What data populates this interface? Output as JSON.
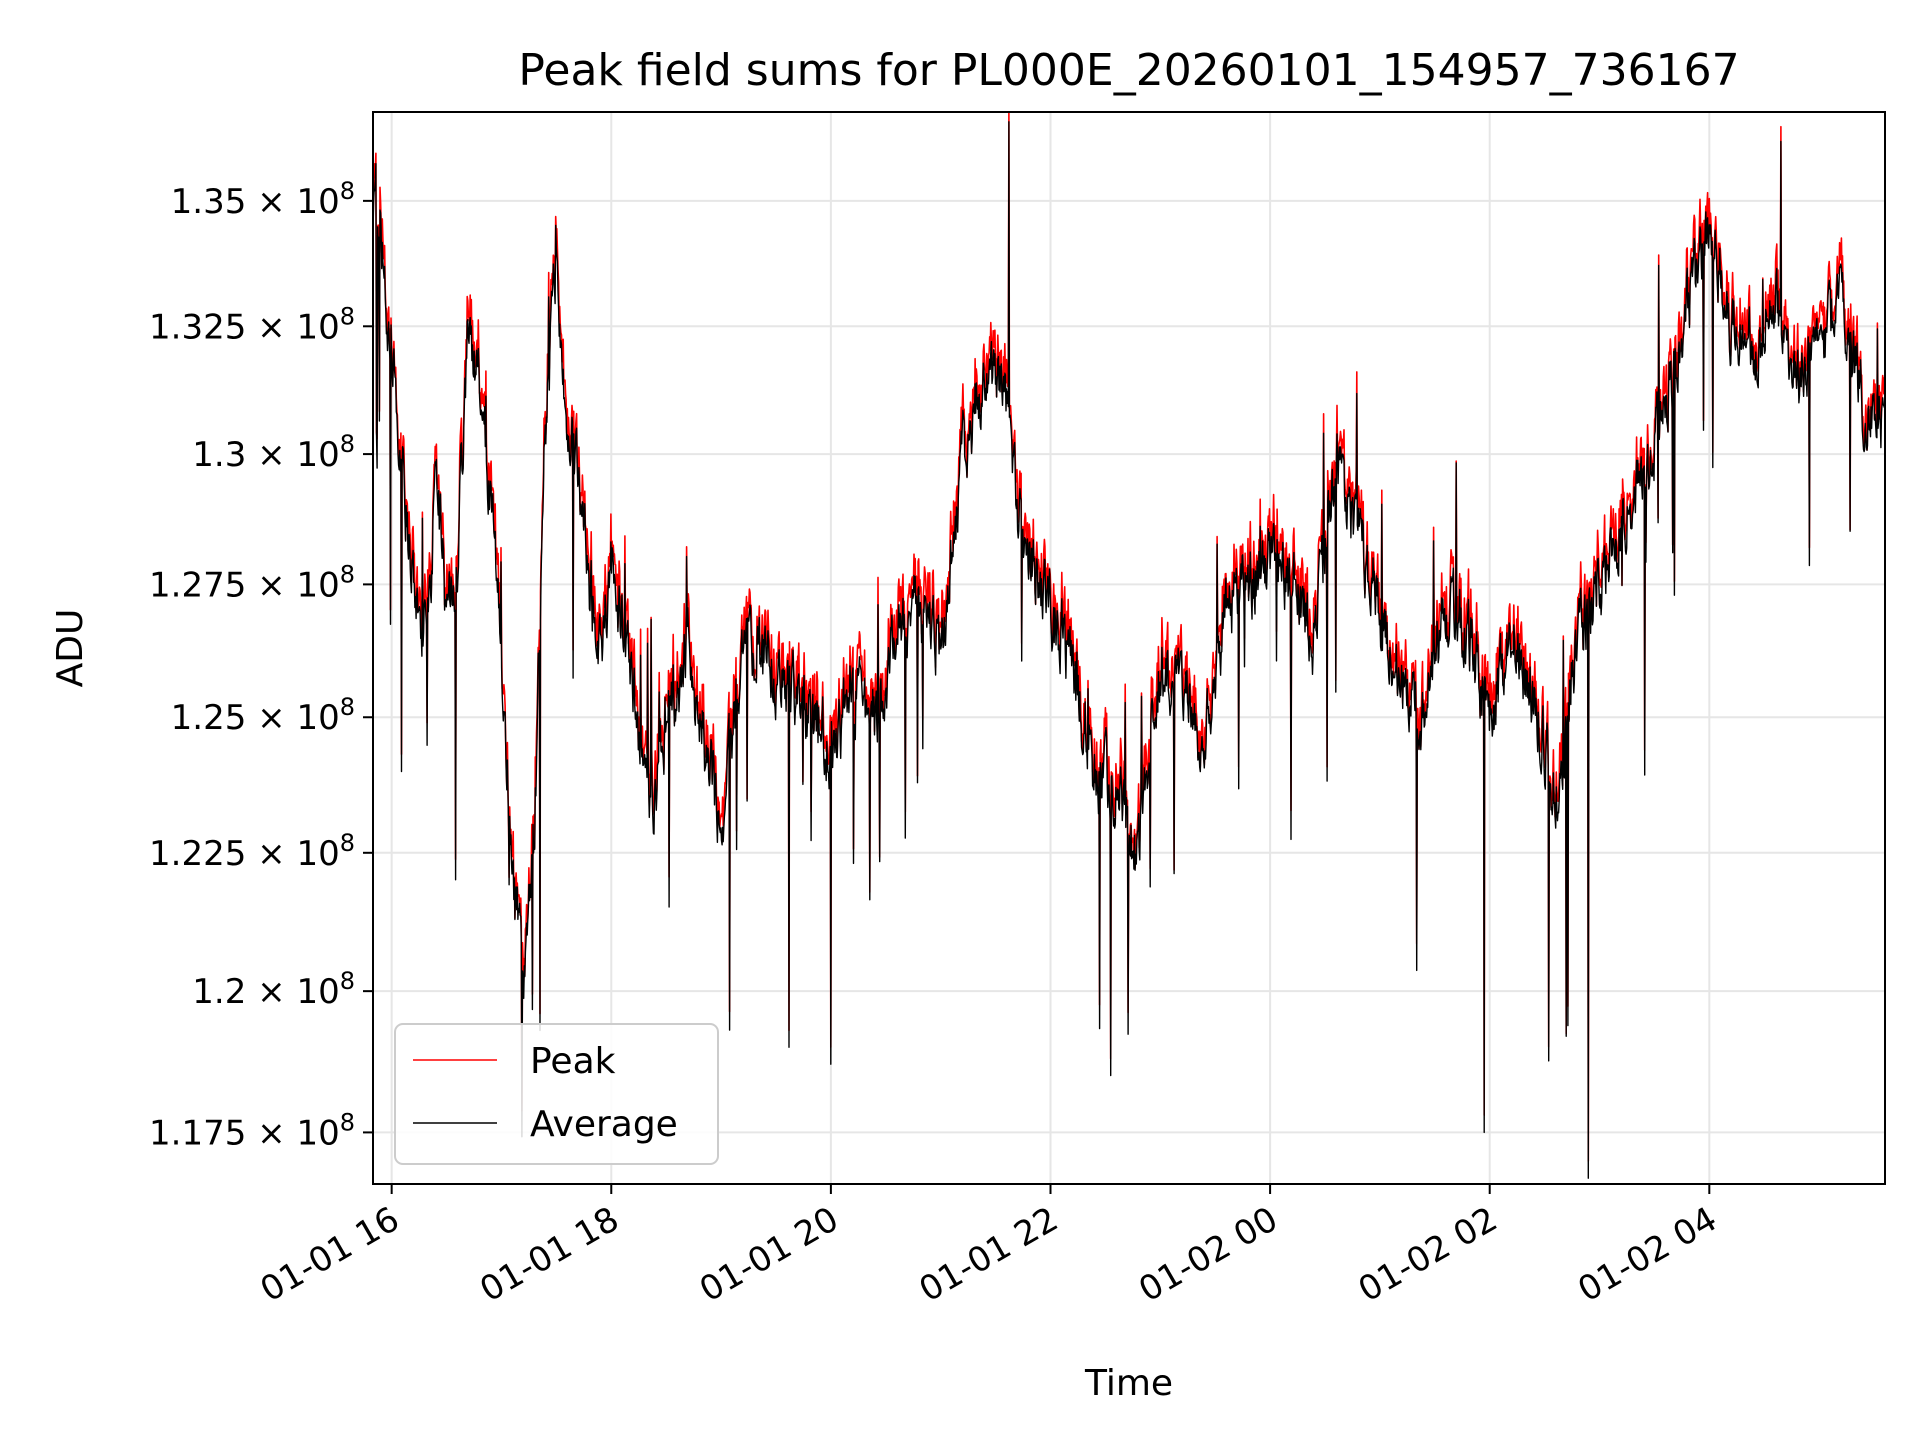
{
  "chart_data": {
    "type": "line",
    "title": "Peak field sums for PL000E_20260101_154957_736167",
    "xlabel": "Time",
    "ylabel": "ADU",
    "y_scale": "log",
    "xlim": [
      15.83,
      29.6
    ],
    "ylim": [
      116600000,
      136800000
    ],
    "grid": true,
    "legend_position": "lower-left",
    "x_ticks": [
      {
        "value": 16,
        "label": "01-01 16"
      },
      {
        "value": 18,
        "label": "01-01 18"
      },
      {
        "value": 20,
        "label": "01-01 20"
      },
      {
        "value": 22,
        "label": "01-01 22"
      },
      {
        "value": 24,
        "label": "01-02 00"
      },
      {
        "value": 26,
        "label": "01-02 02"
      },
      {
        "value": 28,
        "label": "01-02 04"
      }
    ],
    "y_ticks": [
      {
        "value": 117500000,
        "mantissa": "1.175"
      },
      {
        "value": 120000000,
        "mantissa": "1.2"
      },
      {
        "value": 122500000,
        "mantissa": "1.225"
      },
      {
        "value": 125000000,
        "mantissa": "1.25"
      },
      {
        "value": 127500000,
        "mantissa": "1.275"
      },
      {
        "value": 130000000,
        "mantissa": "1.3"
      },
      {
        "value": 132500000,
        "mantissa": "1.325"
      },
      {
        "value": 135000000,
        "mantissa": "1.35"
      }
    ],
    "y_tick_suffix": "× 10",
    "y_tick_exponent": "8",
    "series": [
      {
        "name": "Peak",
        "color": "#ff0000"
      },
      {
        "name": "Average",
        "color": "#000000"
      }
    ],
    "keyframes_x_hours": [
      15.83,
      15.86,
      15.95,
      16.05,
      16.15,
      16.25,
      16.35,
      16.4,
      16.5,
      16.6,
      16.7,
      16.8,
      16.9,
      17.0,
      17.1,
      17.2,
      17.3,
      17.4,
      17.5,
      17.55,
      17.6,
      17.7,
      17.8,
      17.9,
      18.0,
      18.1,
      18.2,
      18.3,
      18.4,
      18.5,
      18.6,
      18.7,
      18.8,
      18.9,
      19.0,
      19.2,
      19.4,
      19.6,
      19.8,
      20.0,
      20.2,
      20.4,
      20.6,
      20.8,
      21.0,
      21.2,
      21.4,
      21.6,
      21.7,
      21.8,
      22.0,
      22.2,
      22.4,
      22.6,
      22.8,
      23.0,
      23.2,
      23.4,
      23.6,
      23.8,
      24.0,
      24.2,
      24.4,
      24.6,
      24.8,
      25.0,
      25.2,
      25.4,
      25.6,
      25.8,
      26.0,
      26.2,
      26.4,
      26.6,
      26.8,
      27.0,
      27.2,
      27.4,
      27.6,
      27.8,
      28.0,
      28.2,
      28.4,
      28.6,
      28.8,
      29.0,
      29.2,
      29.4,
      29.6
    ],
    "keyframes_y_e8": [
      1.345,
      1.35,
      1.33,
      1.31,
      1.285,
      1.265,
      1.268,
      1.3,
      1.27,
      1.28,
      1.325,
      1.315,
      1.29,
      1.265,
      1.22,
      1.205,
      1.23,
      1.305,
      1.34,
      1.32,
      1.305,
      1.295,
      1.275,
      1.26,
      1.28,
      1.265,
      1.255,
      1.24,
      1.235,
      1.25,
      1.255,
      1.265,
      1.25,
      1.24,
      1.23,
      1.265,
      1.26,
      1.255,
      1.25,
      1.245,
      1.255,
      1.25,
      1.265,
      1.27,
      1.26,
      1.3,
      1.315,
      1.31,
      1.29,
      1.28,
      1.27,
      1.26,
      1.24,
      1.235,
      1.225,
      1.26,
      1.255,
      1.245,
      1.27,
      1.275,
      1.28,
      1.275,
      1.265,
      1.3,
      1.285,
      1.27,
      1.255,
      1.25,
      1.27,
      1.265,
      1.25,
      1.265,
      1.255,
      1.235,
      1.265,
      1.275,
      1.285,
      1.295,
      1.31,
      1.33,
      1.345,
      1.325,
      1.32,
      1.33,
      1.315,
      1.32,
      1.33,
      1.31,
      1.305
    ],
    "average_samples": [
      {
        "x": 15.83,
        "y": 134300000
      },
      {
        "x": 17.35,
        "y": 119300000
      },
      {
        "x": 19.62,
        "y": 119000000
      },
      {
        "x": 20.0,
        "y": 118700000
      },
      {
        "x": 21.62,
        "y": 136600000
      },
      {
        "x": 22.55,
        "y": 118500000
      },
      {
        "x": 25.95,
        "y": 117500000
      },
      {
        "x": 26.9,
        "y": 116700000
      },
      {
        "x": 28.65,
        "y": 136200000
      }
    ]
  }
}
